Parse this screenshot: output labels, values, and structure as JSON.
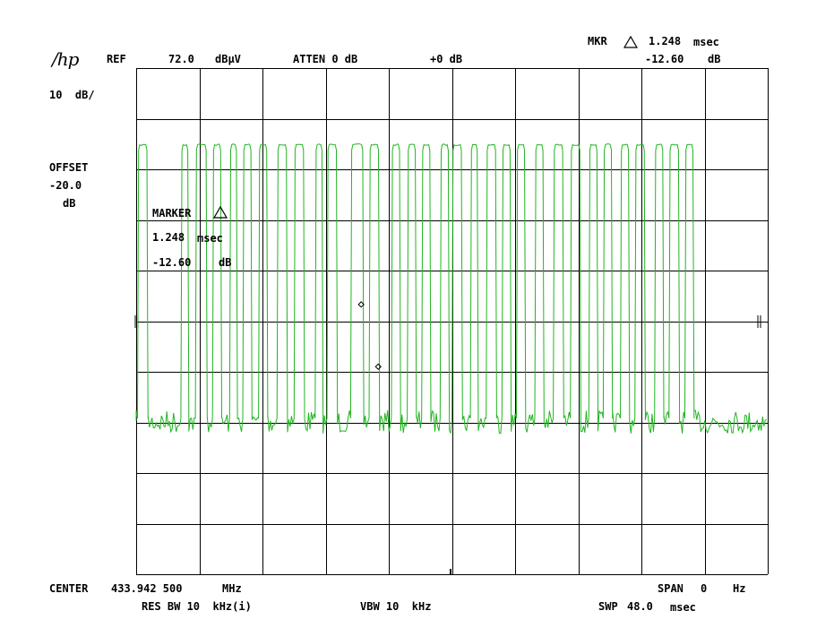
{
  "brand": "hp",
  "header": {
    "ref_label": "REF",
    "ref_value": "72.0",
    "ref_unit": "dBµV",
    "atten": "ATTEN 0 dB",
    "ext_gain": "+0 dB",
    "mkr_label": "MKR",
    "mkr_time": "1.248",
    "mkr_time_unit": "msec",
    "mkr_level": "-12.60",
    "mkr_level_unit": "dB"
  },
  "left": {
    "scale": "10  dB/",
    "offset_label": "OFFSET",
    "offset_value": "-20.0",
    "offset_unit": "dB"
  },
  "marker_box": {
    "title": "MARKER",
    "time": "1.248",
    "time_unit": "msec",
    "level": "-12.60",
    "level_unit": "dB"
  },
  "footer": {
    "center_label": "CENTER",
    "center_value": "433.942 500",
    "center_unit": "MHz",
    "span_label": "SPAN",
    "span_value": "0",
    "span_unit": "Hz",
    "rbw": "RES BW 10  kHz(i)",
    "vbw": "VBW 10  kHz",
    "swp_label": "SWP",
    "swp_value": "48.0",
    "swp_unit": "msec"
  },
  "colors": {
    "trace": "#22b422",
    "grid": "#000000",
    "background": "#ffffff"
  },
  "chart_data": {
    "type": "line",
    "x_range_ms": [
      0,
      48.0
    ],
    "y_range_dBuV": [
      -27.0,
      72.0
    ],
    "grid": true,
    "divisions": [
      10,
      10
    ],
    "series": [
      {
        "pulses_ms": [
          [
            0.1,
            0.9
          ],
          [
            3.4,
            4.0
          ],
          [
            4.5,
            5.4
          ],
          [
            5.8,
            6.5
          ],
          [
            7.1,
            7.7
          ],
          [
            8.1,
            8.8
          ],
          [
            9.3,
            10.0
          ],
          [
            10.7,
            11.5
          ],
          [
            12.0,
            12.8
          ],
          [
            13.6,
            14.2
          ],
          [
            14.5,
            15.3
          ],
          [
            16.3,
            17.3
          ],
          [
            17.7,
            18.5
          ],
          [
            19.4,
            20.1
          ],
          [
            20.6,
            21.3
          ],
          [
            21.7,
            22.4
          ],
          [
            23.1,
            23.8
          ],
          [
            24.0,
            24.8
          ],
          [
            25.4,
            26.0
          ],
          [
            26.6,
            27.4
          ],
          [
            27.8,
            28.5
          ],
          [
            28.9,
            29.6
          ],
          [
            30.3,
            31.0
          ],
          [
            31.7,
            32.5
          ],
          [
            33.0,
            33.8
          ],
          [
            34.4,
            35.1
          ],
          [
            35.5,
            36.2
          ],
          [
            36.8,
            37.5
          ],
          [
            37.9,
            38.7
          ],
          [
            39.4,
            40.1
          ],
          [
            40.5,
            41.3
          ],
          [
            41.7,
            42.4
          ]
        ],
        "high_level_dBuV": 57.0,
        "low_level_dBuV": 3.5,
        "marker_points_ms": [
          17.1,
          18.4
        ]
      }
    ]
  }
}
